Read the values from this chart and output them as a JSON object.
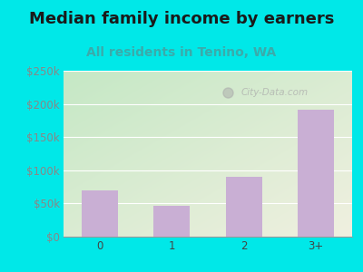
{
  "categories": [
    "0",
    "1",
    "2",
    "3+"
  ],
  "values": [
    70000,
    47000,
    90000,
    191000
  ],
  "bar_color": "#c9afd4",
  "title": "Median family income by earners",
  "subtitle": "All residents in Tenino, WA",
  "title_color": "#1a1a1a",
  "subtitle_color": "#3aabab",
  "background_color": "#00e8e8",
  "plot_bg_top_left": "#c5e8c5",
  "plot_bg_bottom_right": "#f0f0e0",
  "ytick_color": "#888888",
  "xtick_color": "#444444",
  "ytick_labels": [
    "$0",
    "$50k",
    "$100k",
    "$150k",
    "$200k",
    "$250k"
  ],
  "ytick_values": [
    0,
    50000,
    100000,
    150000,
    200000,
    250000
  ],
  "ylim": [
    0,
    250000
  ],
  "title_fontsize": 13,
  "subtitle_fontsize": 10,
  "tick_label_fontsize": 8.5,
  "watermark_text": "City-Data.com"
}
